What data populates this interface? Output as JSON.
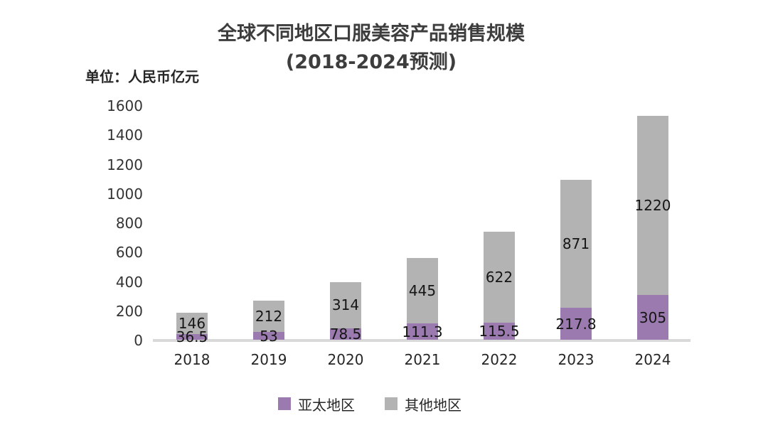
{
  "title": {
    "line1": "全球不同地区口服美容产品销售规模",
    "line2": "(2018-2024预测)"
  },
  "unit_label": "单位：人民币亿元",
  "chart_data": {
    "type": "bar",
    "stacked": true,
    "title": "全球不同地区口服美容产品销售规模 (2018-2024预测)",
    "categories": [
      "2018",
      "2019",
      "2020",
      "2021",
      "2022",
      "2023",
      "2024"
    ],
    "series": [
      {
        "name": "亚太地区",
        "color": "#9b7ab0",
        "values": [
          36.5,
          53,
          78.5,
          111.3,
          115.5,
          217.8,
          305
        ],
        "labels": [
          "36.5",
          "53",
          "78.5",
          "111.3",
          "115.5",
          "217.8",
          "305"
        ]
      },
      {
        "name": "其他地区",
        "color": "#b3b3b3",
        "values": [
          146,
          212,
          314,
          445,
          622,
          871,
          1220
        ],
        "labels": [
          "146",
          "212",
          "314",
          "445",
          "622",
          "871",
          "1220"
        ]
      }
    ],
    "ylim": [
      0,
      1600
    ],
    "y_ticks": [
      0,
      200,
      400,
      600,
      800,
      1000,
      1200,
      1400,
      1600
    ],
    "grid": false,
    "legend_position": "bottom",
    "colors": {
      "axis_line": "#d9d9d9",
      "tick_text": "#333333",
      "data_label_text": "#151515"
    }
  }
}
